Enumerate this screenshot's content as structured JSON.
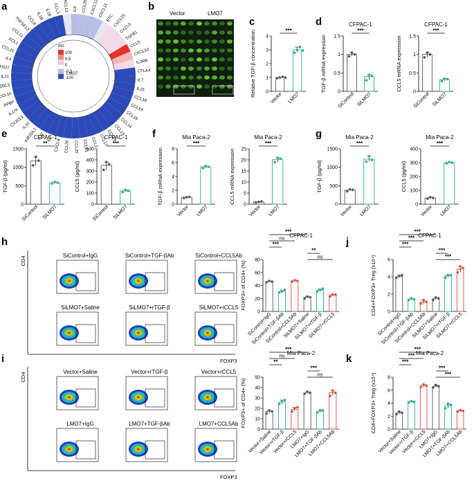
{
  "labels": {
    "a": "a",
    "b": "b",
    "c": "c",
    "d": "d",
    "e": "e",
    "f": "f",
    "g": "g",
    "h": "h",
    "i": "i",
    "j": "j",
    "k": "k"
  },
  "panel_a": {
    "outer_genes": [
      "CXCL13",
      "IL6",
      "CCL20",
      "CXCL12",
      "CXCL11",
      "BTC",
      "CXCL15",
      "CXCL5",
      "TGFB1",
      "CCL5",
      "CXCL10",
      "IL2RB",
      "CTLA4",
      "IL7",
      "IL15",
      "CCL18",
      "CCL19",
      "CCL16",
      "CCL14",
      "CCL13",
      "CCL28",
      "CCL17",
      "CCL2",
      "CCL21",
      "CCL25",
      "CCL26",
      "CXCL9",
      "IL4",
      "IL32",
      "KIR2DL1",
      "IL10",
      "CX3CL1",
      "IL17F",
      "PPBP",
      "CCL10",
      "KIR2DL3",
      "IL21",
      "TIGIT",
      "IL4_",
      "CCL21_",
      "XCL1",
      "CCL11",
      "TNFSF13",
      "CCL8",
      "IL1B",
      "IL18",
      "CCL3"
    ],
    "inner_label": "LMO7",
    "legend_title": "rho",
    "legend_ticks": [
      "100",
      "0.5",
      "0",
      "-0.5",
      "-100"
    ],
    "colors": {
      "high": "#d62728",
      "mid": "#ffffff",
      "low": "#2b4ab8"
    }
  },
  "panel_b": {
    "labels": [
      "Vector",
      "LMO7"
    ]
  },
  "panel_c": {
    "chart_data": {
      "type": "bar",
      "categories": [
        "Vector",
        "LMO7"
      ],
      "values": [
        1.0,
        3.0
      ],
      "ylim": [
        0,
        4
      ],
      "yticks": [
        0,
        1,
        2,
        3,
        4
      ],
      "ylabel": "Relative TGF-β concentration",
      "sig": [
        "***"
      ],
      "points": [
        [
          0.95,
          1.0,
          1.05,
          1.0
        ],
        [
          2.8,
          3.0,
          3.2,
          2.95
        ]
      ],
      "colors": [
        "#555555",
        "#2ca98c"
      ]
    }
  },
  "panel_d": [
    {
      "title": "CFPAC-1",
      "chart_data": {
        "type": "bar",
        "categories": [
          "SiControl",
          "SiLMO7"
        ],
        "values": [
          1.0,
          0.4
        ],
        "ylim": [
          0,
          1.5
        ],
        "yticks": [
          0.0,
          0.5,
          1.0,
          1.5
        ],
        "ylabel": "TGF-β mRNA expression",
        "sig": [
          "***"
        ],
        "points": [
          [
            0.95,
            1.05,
            1.0
          ],
          [
            0.3,
            0.45,
            0.42
          ]
        ],
        "colors": [
          "#555555",
          "#2ca98c"
        ]
      }
    },
    {
      "title": "CFPAC-1",
      "chart_data": {
        "type": "bar",
        "categories": [
          "SiControl",
          "SiLMO7"
        ],
        "values": [
          1.0,
          0.32
        ],
        "ylim": [
          0,
          1.5
        ],
        "yticks": [
          0.0,
          0.5,
          1.0,
          1.5
        ],
        "ylabel": "CCL5 mRNA expression",
        "sig": [
          "***"
        ],
        "points": [
          [
            0.92,
            1.05,
            1.0
          ],
          [
            0.28,
            0.34,
            0.33
          ]
        ],
        "colors": [
          "#555555",
          "#2ca98c"
        ]
      }
    }
  ],
  "panel_e": [
    {
      "title": "CFPAC-1",
      "chart_data": {
        "type": "bar",
        "categories": [
          "SiControl",
          "SiLMO7"
        ],
        "values": [
          1170,
          580
        ],
        "ylim": [
          0,
          1500
        ],
        "yticks": [
          0,
          500,
          1000,
          1500
        ],
        "ylabel": "TGF-β (pg/ml)",
        "sig": [
          "**"
        ],
        "points": [
          [
            1050,
            1280,
            1180
          ],
          [
            560,
            600,
            580
          ]
        ],
        "colors": [
          "#555555",
          "#2ca98c"
        ]
      }
    },
    {
      "title": "CFPAC-1",
      "chart_data": {
        "type": "bar",
        "categories": [
          "SiControl",
          "SiLMO7"
        ],
        "values": [
          350,
          120
        ],
        "ylim": [
          0,
          500
        ],
        "yticks": [
          0,
          100,
          200,
          300,
          400,
          500
        ],
        "ylabel": "CCL5 (pg/ml)",
        "sig": [
          "***"
        ],
        "points": [
          [
            310,
            380,
            360
          ],
          [
            110,
            130,
            120
          ]
        ],
        "colors": [
          "#555555",
          "#2ca98c"
        ]
      }
    }
  ],
  "panel_f": [
    {
      "title": "Mia Paca-2",
      "chart_data": {
        "type": "bar",
        "categories": [
          "Vector",
          "LMO7"
        ],
        "values": [
          1.0,
          5.4
        ],
        "ylim": [
          0,
          8
        ],
        "yticks": [
          0,
          2,
          4,
          6,
          8
        ],
        "ylabel": "TGF-β mRNA expression",
        "sig": [
          "***"
        ],
        "points": [
          [
            0.9,
            1.0,
            1.05
          ],
          [
            5.2,
            5.5,
            5.4
          ]
        ],
        "colors": [
          "#555555",
          "#2ca98c"
        ]
      }
    },
    {
      "title": "Mia Paca-2",
      "chart_data": {
        "type": "bar",
        "categories": [
          "Vector",
          "LMO7"
        ],
        "values": [
          1.0,
          20.2
        ],
        "ylim": [
          0,
          25
        ],
        "yticks": [
          0,
          5,
          10,
          15,
          20,
          25
        ],
        "ylabel": "CCL5 mRNA expression",
        "sig": [
          "***"
        ],
        "points": [
          [
            0.8,
            1.0,
            1.2
          ],
          [
            19,
            21,
            20.5
          ]
        ],
        "colors": [
          "#555555",
          "#2ca98c"
        ]
      }
    }
  ],
  "panel_g": [
    {
      "title": "Mia Paca-2",
      "chart_data": {
        "type": "bar",
        "categories": [
          "Vector",
          "LMO7"
        ],
        "values": [
          380,
          1220
        ],
        "ylim": [
          0,
          1500
        ],
        "yticks": [
          0,
          500,
          1000,
          1500
        ],
        "ylabel": "TGF-β (pg/ml)",
        "sig": [
          "***"
        ],
        "points": [
          [
            350,
            400,
            390
          ],
          [
            1150,
            1300,
            1200
          ]
        ],
        "colors": [
          "#555555",
          "#2ca98c"
        ]
      }
    },
    {
      "title": "Mia Paca-2",
      "chart_data": {
        "type": "bar",
        "categories": [
          "Vector",
          "LMO7"
        ],
        "values": [
          45,
          300
        ],
        "ylim": [
          0,
          400
        ],
        "yticks": [
          0,
          100,
          200,
          300,
          400
        ],
        "ylabel": "CCL5 (pg/ml)",
        "sig": [
          "***"
        ],
        "points": [
          [
            40,
            50,
            45
          ],
          [
            295,
            305,
            300
          ]
        ],
        "colors": [
          "#555555",
          "#2ca98c"
        ]
      }
    }
  ],
  "panel_h": {
    "flow_labels": [
      "SiControl+IgG",
      "SiControl+TGF-βAb",
      "SiControl+CCL5Ab",
      "SiLMO7+Saline",
      "SiLMO7+rTGF-β",
      "SiLMO7+rCCL5"
    ],
    "y_axis": "CD4",
    "x_axis": "FOXP3",
    "chart": {
      "title": "CFPAC-1",
      "chart_data": {
        "type": "bar",
        "categories": [
          "SiControl+IgG",
          "SiControl+TGF-βAb",
          "SiControl+CCL5Ab",
          "SiLMO7+Saline",
          "SiLMO7+rTGF-β",
          "SiLMO7+rCCL5"
        ],
        "values": [
          46,
          31,
          47,
          22,
          33,
          25
        ],
        "ylim": [
          0,
          80
        ],
        "yticks": [
          0,
          20,
          40,
          60,
          80
        ],
        "ylabel": "FOXP3+ of CD4+ (%)",
        "colors": [
          "#555555",
          "#2ca98c",
          "#e0463c",
          "#555555",
          "#2ca98c",
          "#e0463c"
        ],
        "points": [
          [
            45,
            47,
            46
          ],
          [
            29,
            31,
            33
          ],
          [
            46,
            48,
            47
          ],
          [
            20,
            23,
            22
          ],
          [
            31,
            33,
            35
          ],
          [
            23,
            26,
            26
          ]
        ],
        "sigs": [
          {
            "a": 0,
            "b": 1,
            "t": "***"
          },
          {
            "a": 0,
            "b": 2,
            "t": "ns"
          },
          {
            "a": 0,
            "b": 3,
            "t": "***"
          },
          {
            "a": 3,
            "b": 4,
            "t": "**"
          },
          {
            "a": 3,
            "b": 5,
            "t": "ns"
          }
        ]
      }
    }
  },
  "panel_i": {
    "flow_labels": [
      "Vector+Saline",
      "Vector+rTGF-β",
      "Vector+rCCL5",
      "LMO7+IgG",
      "LMO7+TGF-βAb",
      "LMO7+CCL5Ab"
    ],
    "y_axis": "CD4",
    "x_axis": "FOXP3",
    "chart": {
      "title": "Mia Paca-2",
      "chart_data": {
        "type": "bar",
        "categories": [
          "Vector+Saline",
          "Vector+rTGF-β",
          "Vector+rCCL5",
          "LMO7+IgG",
          "LMO7+TGF-βAb",
          "LMO7+CCL5Ab"
        ],
        "values": [
          17,
          26,
          19,
          35,
          17,
          35
        ],
        "ylim": [
          0,
          50
        ],
        "yticks": [
          0,
          10,
          20,
          30,
          40,
          50
        ],
        "ylabel": "FOXP3+ of CD4+ (%)",
        "colors": [
          "#555555",
          "#2ca98c",
          "#e0463c",
          "#555555",
          "#2ca98c",
          "#e0463c"
        ],
        "points": [
          [
            15,
            18,
            17
          ],
          [
            24,
            27,
            28
          ],
          [
            17,
            20,
            21
          ],
          [
            34,
            36,
            35
          ],
          [
            16,
            18,
            18
          ],
          [
            32,
            37,
            35
          ]
        ],
        "sigs": [
          {
            "a": 0,
            "b": 1,
            "t": "**"
          },
          {
            "a": 0,
            "b": 2,
            "t": "ns"
          },
          {
            "a": 0,
            "b": 3,
            "t": "***"
          },
          {
            "a": 3,
            "b": 4,
            "t": "***"
          },
          {
            "a": 3,
            "b": 5,
            "t": "ns"
          }
        ]
      }
    }
  },
  "panel_j": {
    "title": "CFPAC-1",
    "chart_data": {
      "type": "bar",
      "categories": [
        "SiControl+IgG",
        "SiControl+TGF-βAb",
        "SiControl+CCL5Ab",
        "SiLMO7+Saline",
        "SiLMO7+rTGF-β",
        "SiLMO7+rCCL5"
      ],
      "values": [
        4.0,
        1.4,
        1.1,
        1.5,
        4.1,
        4.9
      ],
      "ylim": [
        0,
        6
      ],
      "yticks": [
        0,
        2,
        4,
        6
      ],
      "ylabel": "CD4+FOXP3+ Treg (x10⁴)",
      "colors": [
        "#555555",
        "#2ca98c",
        "#e0463c",
        "#555555",
        "#2ca98c",
        "#e0463c"
      ],
      "points": [
        [
          3.9,
          4.1,
          4.2
        ],
        [
          1.3,
          1.5,
          1.4
        ],
        [
          0.9,
          1.3,
          1.1
        ],
        [
          1.3,
          1.6,
          1.5
        ],
        [
          3.9,
          4.2,
          4.2
        ],
        [
          4.5,
          5.2,
          5.0
        ]
      ],
      "sigs": [
        {
          "a": 0,
          "b": 1,
          "t": "***"
        },
        {
          "a": 0,
          "b": 2,
          "t": "***"
        },
        {
          "a": 0,
          "b": 3,
          "t": "***"
        },
        {
          "a": 3,
          "b": 4,
          "t": "***"
        },
        {
          "a": 3,
          "b": 5,
          "t": "***"
        }
      ]
    }
  },
  "panel_k": {
    "title": "Mia Paca-2",
    "chart_data": {
      "type": "bar",
      "categories": [
        "Vector+Saline",
        "Vector+rTGF-β",
        "Vector+rCCL5",
        "LMO7+IgG",
        "LMO7+TGF-βAb",
        "LMO7+CCL5Ab"
      ],
      "values": [
        2.5,
        4.2,
        6.7,
        6.6,
        3.6,
        2.8
      ],
      "ylim": [
        0,
        8
      ],
      "yticks": [
        0,
        2,
        4,
        6,
        8
      ],
      "ylabel": "CD4+FOXP3+ Treg (x10⁴)",
      "colors": [
        "#555555",
        "#2ca98c",
        "#e0463c",
        "#555555",
        "#2ca98c",
        "#e0463c"
      ],
      "points": [
        [
          2.3,
          2.7,
          2.5
        ],
        [
          4.1,
          4.3,
          4.2
        ],
        [
          6.5,
          6.9,
          6.7
        ],
        [
          6.4,
          6.8,
          6.6
        ],
        [
          3.2,
          3.9,
          3.7
        ],
        [
          2.7,
          2.9,
          2.8
        ]
      ],
      "sigs": [
        {
          "a": 0,
          "b": 1,
          "t": "***"
        },
        {
          "a": 0,
          "b": 2,
          "t": "***"
        },
        {
          "a": 0,
          "b": 3,
          "t": "***"
        },
        {
          "a": 3,
          "b": 4,
          "t": "***"
        },
        {
          "a": 3,
          "b": 5,
          "t": "***"
        }
      ]
    }
  }
}
